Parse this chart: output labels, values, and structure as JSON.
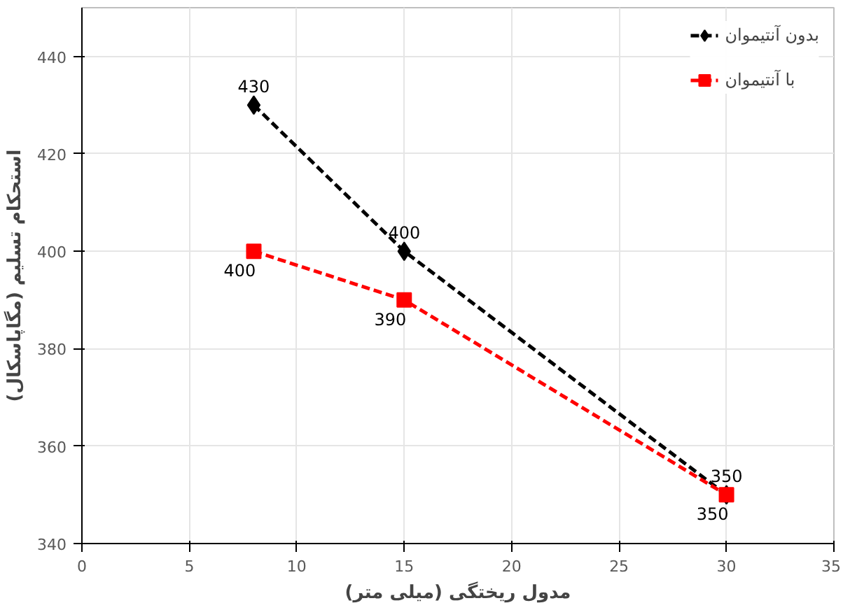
{
  "chart_data": {
    "type": "line",
    "xlabel": "مدول ریختگی (میلی متر)",
    "ylabel": "استحکام تسلیم (مگاپاسکال)",
    "x": [
      8,
      15,
      30
    ],
    "series": [
      {
        "name": "بدون آنتیموان",
        "color": "#000000",
        "values": [
          430,
          400,
          350
        ],
        "marker": "diamond"
      },
      {
        "name": "با آنتیموان",
        "color": "#ff0000",
        "values": [
          400,
          390,
          350
        ],
        "marker": "square"
      }
    ],
    "xlim": [
      0,
      35
    ],
    "xticks": [
      0,
      5,
      10,
      15,
      20,
      25,
      30,
      35
    ],
    "ylim": [
      340,
      450
    ],
    "yticks": [
      340,
      360,
      380,
      400,
      420,
      440
    ],
    "grid": true,
    "legend": "top right",
    "line_style": "dashed",
    "data_labels": true
  }
}
